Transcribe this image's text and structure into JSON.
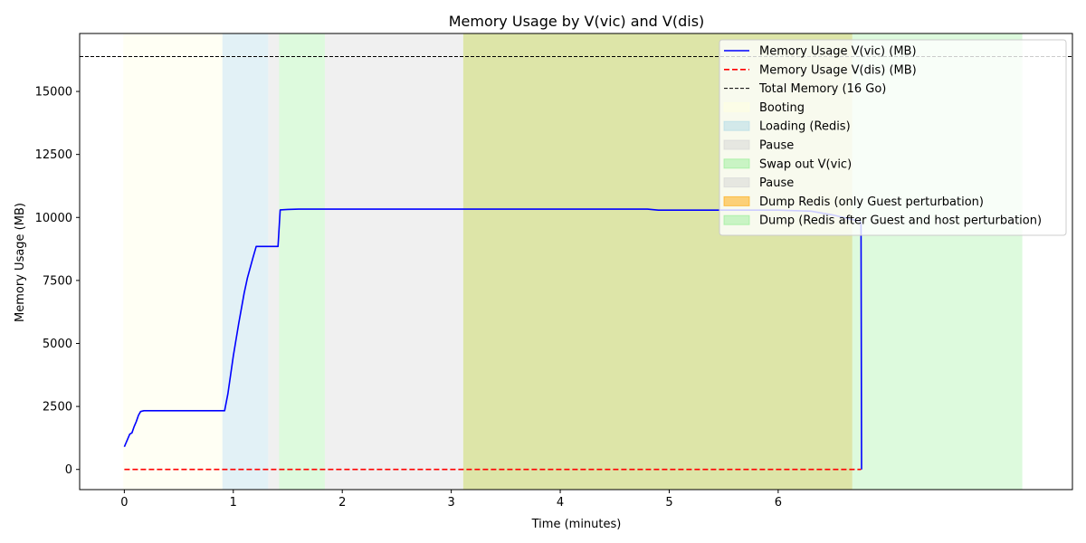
{
  "chart_data": {
    "type": "line",
    "title": "Memory Usage by V(vic) and V(dis)",
    "xlabel": "Time (minutes)",
    "ylabel": "Memory Usage (MB)",
    "xlim": [
      -0.41,
      8.7
    ],
    "ylim": [
      -800,
      17300
    ],
    "xticks": [
      0,
      1,
      2,
      3,
      4,
      5,
      6
    ],
    "yticks": [
      0,
      2500,
      5000,
      7500,
      10000,
      12500,
      15000
    ],
    "legend_position": "top-right",
    "grid": false,
    "total_memory": {
      "name": "Total Memory (16 Go)",
      "value": 16384,
      "color": "#000000"
    },
    "series": [
      {
        "name": "Memory Usage V(vic) (MB)",
        "color": "#0000ff",
        "style": "solid",
        "x": [
          0,
          0.03,
          0.05,
          0.07,
          0.09,
          0.11,
          0.13,
          0.15,
          0.18,
          0.25,
          0.5,
          0.75,
          0.92,
          0.95,
          1.0,
          1.05,
          1.1,
          1.13,
          1.18,
          1.21,
          1.24,
          1.35,
          1.41,
          1.43,
          1.5,
          1.6,
          1.8,
          2.0,
          3.0,
          4.0,
          4.8,
          4.9,
          5.5,
          6.0,
          6.3,
          6.5,
          6.7,
          6.75,
          6.76,
          6.765
        ],
        "y": [
          900,
          1200,
          1400,
          1450,
          1700,
          1900,
          2150,
          2300,
          2330,
          2330,
          2330,
          2330,
          2330,
          3000,
          4500,
          5800,
          7000,
          7600,
          8400,
          8850,
          8850,
          8850,
          8850,
          10300,
          10320,
          10330,
          10330,
          10330,
          10330,
          10330,
          10330,
          10290,
          10290,
          10290,
          10250,
          10100,
          9900,
          9850,
          9800,
          0
        ]
      },
      {
        "name": "Memory Usage V(dis) (MB)",
        "color": "#ff0000",
        "style": "dashed",
        "x": [
          0,
          6.76
        ],
        "y": [
          0,
          0
        ]
      }
    ],
    "phases": [
      {
        "name": "Booting",
        "start": -0.01,
        "end": 0.9,
        "color": "#ffffe0",
        "opacity": 0.35
      },
      {
        "name": "Loading (Redis)",
        "start": 0.9,
        "end": 1.32,
        "color": "#add8e6",
        "opacity": 0.35
      },
      {
        "name": "Pause",
        "start": 1.32,
        "end": 1.42,
        "color": "#d3d3d3",
        "opacity": 0.35
      },
      {
        "name": "Swap out V(vic)",
        "start": 1.42,
        "end": 1.84,
        "color": "#90ee90",
        "opacity": 0.3
      },
      {
        "name": "Pause",
        "start": 1.84,
        "end": 3.11,
        "color": "#d3d3d3",
        "opacity": 0.35
      },
      {
        "name": "Dump Redis (only Guest perturbation)",
        "start": 3.11,
        "end": 6.68,
        "color": "#ffa500",
        "opacity": 0.35
      },
      {
        "name": "Dump (Redis after Guest and host perturbation)",
        "start": 6.68,
        "end": 8.24,
        "color": "#90ee90",
        "opacity": 0.3
      }
    ],
    "phase_overlap_color": "#dde5a8"
  }
}
